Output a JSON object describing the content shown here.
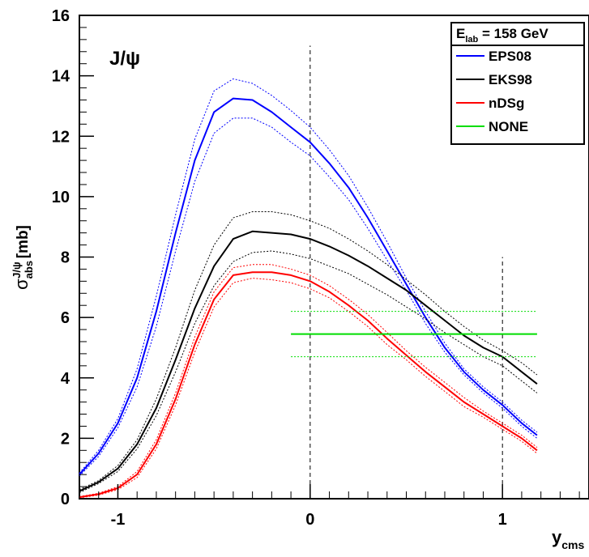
{
  "chart_data": {
    "type": "line",
    "x_axis": {
      "title_main": "y",
      "title_sub": "cms",
      "range": [
        -1.2,
        1.45
      ],
      "tick_labels": [
        "-1",
        "0",
        "1"
      ],
      "ticks": [
        -1,
        0,
        1
      ]
    },
    "y_axis": {
      "title_sigma": "σ",
      "title_sup": "J/ψ",
      "title_sub": "abs",
      "title_unit": "[mb]",
      "range": [
        0,
        16
      ],
      "tick_labels": [
        "0",
        "2",
        "4",
        "6",
        "8",
        "10",
        "12",
        "14",
        "16"
      ],
      "ticks": [
        0,
        2,
        4,
        6,
        8,
        10,
        12,
        14,
        16
      ]
    },
    "annotation": "J/ψ",
    "legend": {
      "header_main": "E",
      "header_sub": "lab",
      "header_rest": " = 158 GeV",
      "placement": "top-right",
      "entries": [
        "EPS08",
        "EKS98",
        "nDSg",
        "NONE"
      ]
    },
    "reference_lines_x": [
      0,
      1
    ],
    "x": [
      -1.2,
      -1.1,
      -1.0,
      -0.9,
      -0.8,
      -0.7,
      -0.6,
      -0.5,
      -0.4,
      -0.3,
      -0.2,
      -0.1,
      0.0,
      0.1,
      0.2,
      0.3,
      0.4,
      0.5,
      0.6,
      0.7,
      0.8,
      0.9,
      1.0,
      1.1,
      1.18
    ],
    "series": [
      {
        "name": "EPS08",
        "color": "#0000ff",
        "values": [
          0.8,
          1.5,
          2.5,
          4.0,
          6.2,
          8.8,
          11.2,
          12.8,
          13.25,
          13.2,
          12.8,
          12.3,
          11.8,
          11.1,
          10.3,
          9.3,
          8.2,
          7.1,
          6.0,
          5.0,
          4.2,
          3.6,
          3.1,
          2.5,
          2.1
        ],
        "band_upper": [
          0.85,
          1.6,
          2.65,
          4.3,
          6.7,
          9.4,
          11.9,
          13.5,
          13.9,
          13.75,
          13.35,
          12.85,
          12.3,
          11.55,
          10.7,
          9.65,
          8.5,
          7.3,
          6.2,
          5.15,
          4.3,
          3.7,
          3.2,
          2.6,
          2.2
        ],
        "band_lower": [
          0.75,
          1.4,
          2.35,
          3.7,
          5.7,
          8.2,
          10.5,
          12.1,
          12.6,
          12.6,
          12.3,
          11.8,
          11.35,
          10.65,
          9.9,
          8.95,
          7.9,
          6.9,
          5.8,
          4.85,
          4.1,
          3.5,
          3.0,
          2.4,
          2.0
        ]
      },
      {
        "name": "EKS98",
        "color": "#000000",
        "values": [
          0.25,
          0.55,
          1.0,
          1.8,
          3.0,
          4.6,
          6.3,
          7.7,
          8.6,
          8.85,
          8.8,
          8.75,
          8.6,
          8.35,
          8.05,
          7.7,
          7.3,
          6.9,
          6.4,
          5.9,
          5.4,
          5.0,
          4.7,
          4.2,
          3.8
        ],
        "band_upper": [
          0.3,
          0.6,
          1.1,
          1.95,
          3.3,
          5.0,
          6.9,
          8.4,
          9.3,
          9.5,
          9.5,
          9.4,
          9.2,
          8.95,
          8.6,
          8.2,
          7.75,
          7.25,
          6.75,
          6.2,
          5.7,
          5.25,
          4.9,
          4.5,
          4.1
        ],
        "band_lower": [
          0.2,
          0.5,
          0.9,
          1.65,
          2.75,
          4.2,
          5.8,
          7.05,
          7.85,
          8.15,
          8.2,
          8.1,
          7.95,
          7.7,
          7.45,
          7.1,
          6.75,
          6.35,
          5.95,
          5.5,
          5.1,
          4.7,
          4.4,
          3.9,
          3.5
        ]
      },
      {
        "name": "nDSg",
        "color": "#ff0000",
        "values": [
          0.05,
          0.15,
          0.35,
          0.8,
          1.8,
          3.3,
          5.1,
          6.6,
          7.4,
          7.5,
          7.5,
          7.4,
          7.2,
          6.85,
          6.4,
          5.9,
          5.3,
          4.75,
          4.2,
          3.7,
          3.2,
          2.8,
          2.4,
          2.0,
          1.6
        ],
        "band_upper": [
          0.07,
          0.18,
          0.4,
          0.9,
          1.95,
          3.5,
          5.35,
          6.85,
          7.65,
          7.75,
          7.75,
          7.6,
          7.4,
          7.05,
          6.6,
          6.1,
          5.5,
          4.9,
          4.35,
          3.85,
          3.35,
          2.9,
          2.5,
          2.1,
          1.7
        ],
        "band_lower": [
          0.03,
          0.12,
          0.3,
          0.7,
          1.65,
          3.1,
          4.85,
          6.35,
          7.15,
          7.3,
          7.25,
          7.15,
          6.95,
          6.65,
          6.2,
          5.7,
          5.1,
          4.6,
          4.05,
          3.55,
          3.05,
          2.7,
          2.3,
          1.9,
          1.5
        ]
      },
      {
        "name": "NONE",
        "color": "#00dd00",
        "x_range": [
          -0.1,
          1.18
        ],
        "value": 5.45,
        "band_upper_value": 6.2,
        "band_lower_value": 4.7
      }
    ]
  }
}
